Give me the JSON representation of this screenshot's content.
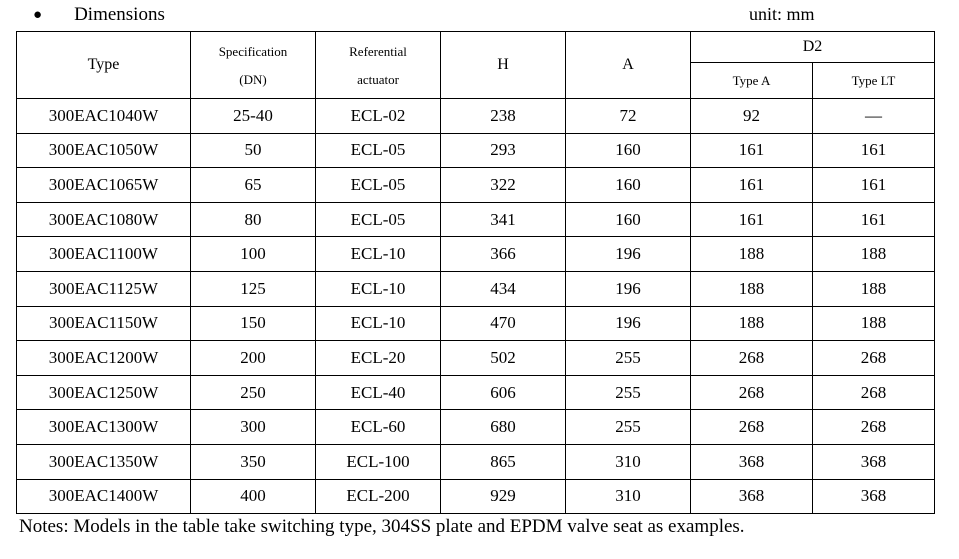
{
  "page": {
    "title_bullet": "●",
    "title": "Dimensions",
    "unit_label": "unit: mm",
    "notes": "Notes: Models in the table take switching type, 304SS plate and EPDM valve seat as examples."
  },
  "table": {
    "headers": {
      "type": "Type",
      "spec_line1": "Specification",
      "spec_line2": "(DN)",
      "actuator_line1": "Referential",
      "actuator_line2": "actuator",
      "h": "H",
      "a": "A",
      "d2": "D2",
      "d2_type_a": "Type A",
      "d2_type_lt": "Type LT"
    },
    "columns": [
      "type",
      "specification-dn",
      "referential-actuator",
      "h",
      "a",
      "d2-type-a",
      "d2-type-lt"
    ],
    "rows": [
      [
        "300EAC1040W",
        "25-40",
        "ECL-02",
        "238",
        "72",
        "92",
        "—"
      ],
      [
        "300EAC1050W",
        "50",
        "ECL-05",
        "293",
        "160",
        "161",
        "161"
      ],
      [
        "300EAC1065W",
        "65",
        "ECL-05",
        "322",
        "160",
        "161",
        "161"
      ],
      [
        "300EAC1080W",
        "80",
        "ECL-05",
        "341",
        "160",
        "161",
        "161"
      ],
      [
        "300EAC1100W",
        "100",
        "ECL-10",
        "366",
        "196",
        "188",
        "188"
      ],
      [
        "300EAC1125W",
        "125",
        "ECL-10",
        "434",
        "196",
        "188",
        "188"
      ],
      [
        "300EAC1150W",
        "150",
        "ECL-10",
        "470",
        "196",
        "188",
        "188"
      ],
      [
        "300EAC1200W",
        "200",
        "ECL-20",
        "502",
        "255",
        "268",
        "268"
      ],
      [
        "300EAC1250W",
        "250",
        "ECL-40",
        "606",
        "255",
        "268",
        "268"
      ],
      [
        "300EAC1300W",
        "300",
        "ECL-60",
        "680",
        "255",
        "268",
        "268"
      ],
      [
        "300EAC1350W",
        "350",
        "ECL-100",
        "865",
        "310",
        "368",
        "368"
      ],
      [
        "300EAC1400W",
        "400",
        "ECL-200",
        "929",
        "310",
        "368",
        "368"
      ]
    ],
    "colors": {
      "border": "#000000",
      "text": "#000000",
      "background": "#ffffff"
    }
  }
}
